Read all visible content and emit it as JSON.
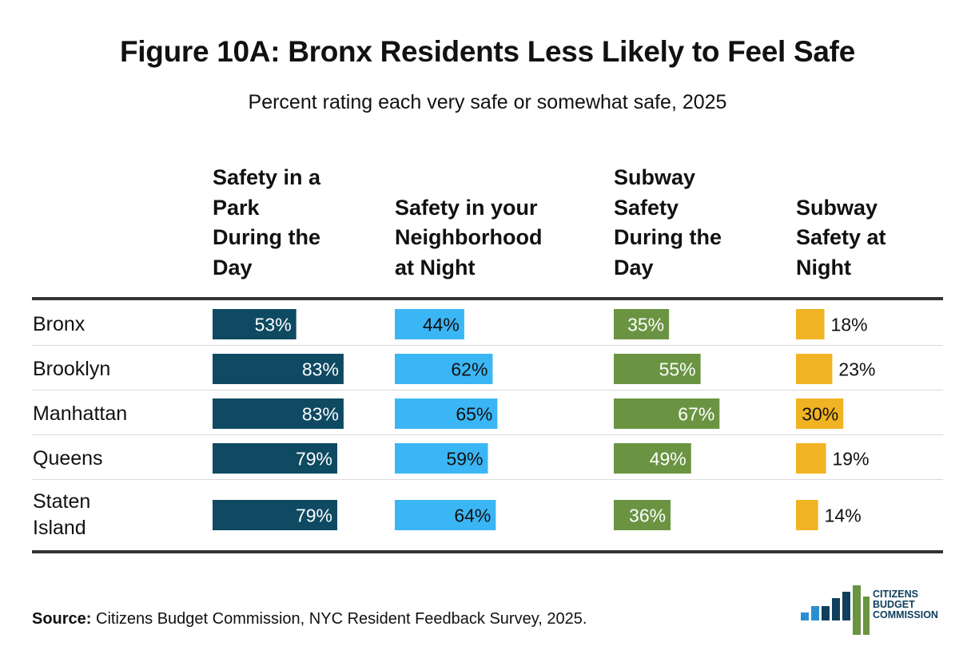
{
  "chart_data": {
    "type": "bar",
    "title": "Figure 10A: Bronx Residents Less Likely to Feel Safe",
    "subtitle": "Percent rating each very safe or somewhat safe, 2025",
    "categories": [
      "Bronx",
      "Brooklyn",
      "Manhattan",
      "Queens",
      "Staten Island"
    ],
    "category_lines": [
      [
        "Bronx"
      ],
      [
        "Brooklyn"
      ],
      [
        "Manhattan"
      ],
      [
        "Queens"
      ],
      [
        "Staten",
        "Island"
      ]
    ],
    "xlim": [
      0,
      100
    ],
    "series": [
      {
        "name": "Safety in a Park During the Day",
        "header_lines": [
          "Safety in a",
          "Park",
          "During the",
          "Day"
        ],
        "color": "#0e4a62",
        "values": [
          53,
          83,
          83,
          79,
          79
        ],
        "labels": [
          "53%",
          "83%",
          "83%",
          "79%",
          "79%"
        ]
      },
      {
        "name": "Safety in your Neighborhood at Night",
        "header_lines": [
          "Safety in your",
          "Neighborhood",
          "at Night"
        ],
        "color": "#3bb6f5",
        "values": [
          44,
          62,
          65,
          59,
          64
        ],
        "labels": [
          "44%",
          "62%",
          "65%",
          "59%",
          "64%"
        ]
      },
      {
        "name": "Subway Safety During the Day",
        "header_lines": [
          "Subway",
          "Safety",
          "During the",
          "Day"
        ],
        "color": "#6a9442",
        "values": [
          35,
          55,
          67,
          49,
          36
        ],
        "labels": [
          "35%",
          "55%",
          "67%",
          "49%",
          "36%"
        ]
      },
      {
        "name": "Subway Safety at Night",
        "header_lines": [
          "Subway",
          "Safety at",
          "Night"
        ],
        "color": "#f0b323",
        "values": [
          18,
          23,
          30,
          19,
          14
        ],
        "labels": [
          "18%",
          "23%",
          "30%",
          "19%",
          "14%"
        ]
      }
    ]
  },
  "source": {
    "label": "Source:",
    "text": " Citizens Budget Commission, NYC Resident Feedback Survey, 2025."
  },
  "logo": {
    "line1": "CITIZENS",
    "line2": "BUDGET",
    "line3": "COMMISSION",
    "colors": {
      "blue": "#2a8fd0",
      "navy": "#0f3f5c",
      "green": "#6a9442"
    }
  }
}
